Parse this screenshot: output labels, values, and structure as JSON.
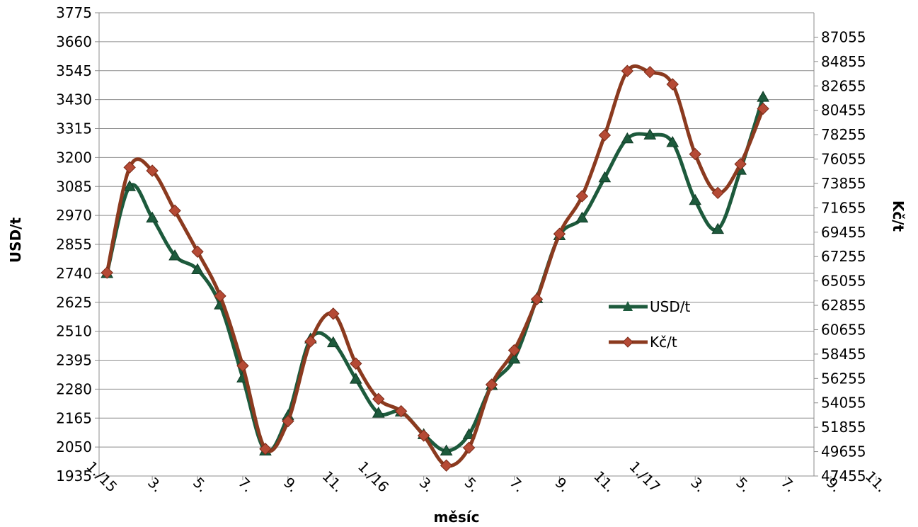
{
  "chart_data": {
    "type": "line",
    "xlabel": "měsíc",
    "ylabel": "USD/t",
    "y2label": "Kč/t",
    "ylim": [
      1935,
      3775
    ],
    "y_ticks": [
      1935,
      2050,
      2165,
      2280,
      2395,
      2510,
      2625,
      2740,
      2855,
      2970,
      3085,
      3200,
      3315,
      3430,
      3545,
      3660,
      3775
    ],
    "y2lim": [
      47455,
      89255
    ],
    "y2_ticks": [
      47455,
      49655,
      51855,
      54055,
      56255,
      58455,
      60655,
      62855,
      65055,
      67255,
      69455,
      71655,
      73855,
      76055,
      78255,
      80455,
      82655,
      84855,
      87055
    ],
    "x_tick_labels": [
      "1./15",
      "3.",
      "5.",
      "7.",
      "9.",
      "11.",
      "1./16",
      "3.",
      "5.",
      "7.",
      "9.",
      "11.",
      "1./17",
      "3.",
      "5.",
      "7.",
      "9.",
      "11."
    ],
    "grid": true,
    "legend_position": "right",
    "series": [
      {
        "name": "USD/t",
        "axis": "left",
        "color": "#1d5a3c",
        "marker": "triangle",
        "values": [
          2740,
          3085,
          2960,
          2810,
          2755,
          2615,
          2325,
          2035,
          2175,
          2480,
          2465,
          2320,
          2185,
          2190,
          2100,
          2035,
          2100,
          2295,
          2400,
          2640,
          2890,
          2960,
          3120,
          3275,
          3290,
          3260,
          3030,
          2915,
          3150,
          3440
        ]
      },
      {
        "name": "Kč/t",
        "axis": "right",
        "color": "#8b3a1f",
        "marker": "diamond",
        "values": [
          65800,
          75300,
          75000,
          71400,
          67700,
          63700,
          57400,
          49900,
          52400,
          59600,
          62100,
          57600,
          54400,
          53300,
          51100,
          48400,
          50000,
          55700,
          58800,
          63400,
          69300,
          72700,
          78200,
          84000,
          83900,
          82800,
          76500,
          73000,
          75600,
          80600
        ]
      }
    ]
  }
}
